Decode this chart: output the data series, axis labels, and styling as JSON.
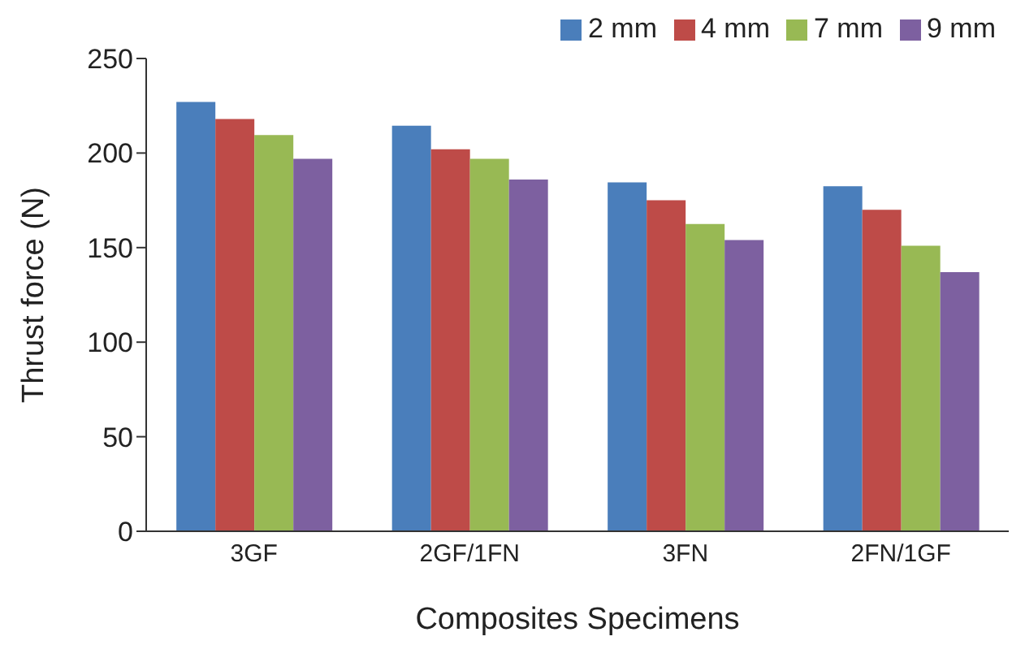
{
  "chart_data": {
    "type": "bar",
    "xlabel": "Composites Specimens",
    "ylabel": "Thrust force (N)",
    "categories": [
      "3GF",
      "2GF/1FN",
      "3FN",
      "2FN/1GF"
    ],
    "series": [
      {
        "name": "2 mm",
        "color": "#4a7ebb",
        "values": [
          227,
          214.5,
          184.5,
          182.5
        ]
      },
      {
        "name": "4 mm",
        "color": "#be4b48",
        "values": [
          218,
          202,
          175,
          170
        ]
      },
      {
        "name": "7 mm",
        "color": "#98b954",
        "values": [
          209.5,
          197,
          162.5,
          151
        ]
      },
      {
        "name": "9 mm",
        "color": "#7d60a0",
        "values": [
          197,
          186,
          154,
          137
        ]
      }
    ],
    "ylim": [
      0,
      250
    ],
    "yticks": [
      0,
      50,
      100,
      150,
      200,
      250
    ],
    "grid": false,
    "legend": "top right"
  }
}
